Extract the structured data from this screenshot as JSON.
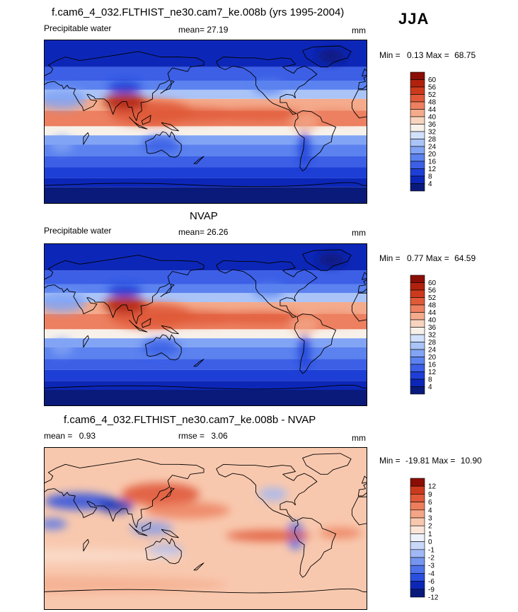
{
  "season": "JJA",
  "colors": {
    "abs_levels": [
      "#0a1a7a",
      "#0c27b8",
      "#1e3fd6",
      "#3c5fe6",
      "#5b82ef",
      "#82a4f4",
      "#aac4f8",
      "#d2e1fb",
      "#f7f1ea",
      "#f8d4bf",
      "#f4ab8c",
      "#ec8060",
      "#e05a3a",
      "#cc3a1e",
      "#b0220e",
      "#8a0e05"
    ],
    "diff_levels": [
      "#0a1a7a",
      "#0c27b8",
      "#2a4fe0",
      "#4e72ea",
      "#7595f0",
      "#a0b8f5",
      "#c8d8fa",
      "#eef2fb",
      "#fbe5d7",
      "#f8c8ae",
      "#f3a585",
      "#ec7e5c",
      "#e05a3a",
      "#cc3a1e",
      "#8a0e05"
    ]
  },
  "chart_data": [
    {
      "type": "heatmap",
      "title": "f.cam6_4_032.FLTHIST_ne30.cam7_ke.008b (yrs 1995-2004)",
      "left_label": "Precipitable water",
      "mean_label": "mean=",
      "mean_value": "27.19",
      "units": "mm",
      "min_label": "Min =",
      "min_value": "0.13",
      "max_label": "Max =",
      "max_value": "68.75",
      "colorbar_levels": [
        "60",
        "56",
        "52",
        "48",
        "44",
        "40",
        "36",
        "32",
        "28",
        "24",
        "20",
        "16",
        "12",
        "8",
        "4"
      ]
    },
    {
      "type": "heatmap",
      "title": "NVAP",
      "left_label": "Precipitable water",
      "mean_label": "mean=",
      "mean_value": "26.26",
      "units": "mm",
      "min_label": "Min =",
      "min_value": "0.77",
      "max_label": "Max =",
      "max_value": "64.59",
      "colorbar_levels": [
        "60",
        "56",
        "52",
        "48",
        "44",
        "40",
        "36",
        "32",
        "28",
        "24",
        "20",
        "16",
        "12",
        "8",
        "4"
      ]
    },
    {
      "type": "heatmap",
      "title": "f.cam6_4_032.FLTHIST_ne30.cam7_ke.008b - NVAP",
      "left_label": "mean =",
      "mean_value": "0.93",
      "rmse_label": "rmse =",
      "rmse_value": "3.06",
      "units": "mm",
      "min_label": "Min =",
      "min_value": "-19.81",
      "max_label": "Max =",
      "max_value": "10.90",
      "colorbar_levels": [
        "12",
        "9",
        "6",
        "4",
        "3",
        "2",
        "1",
        "0",
        "-1",
        "-2",
        "-3",
        "-4",
        "-6",
        "-9",
        "-12"
      ]
    }
  ]
}
